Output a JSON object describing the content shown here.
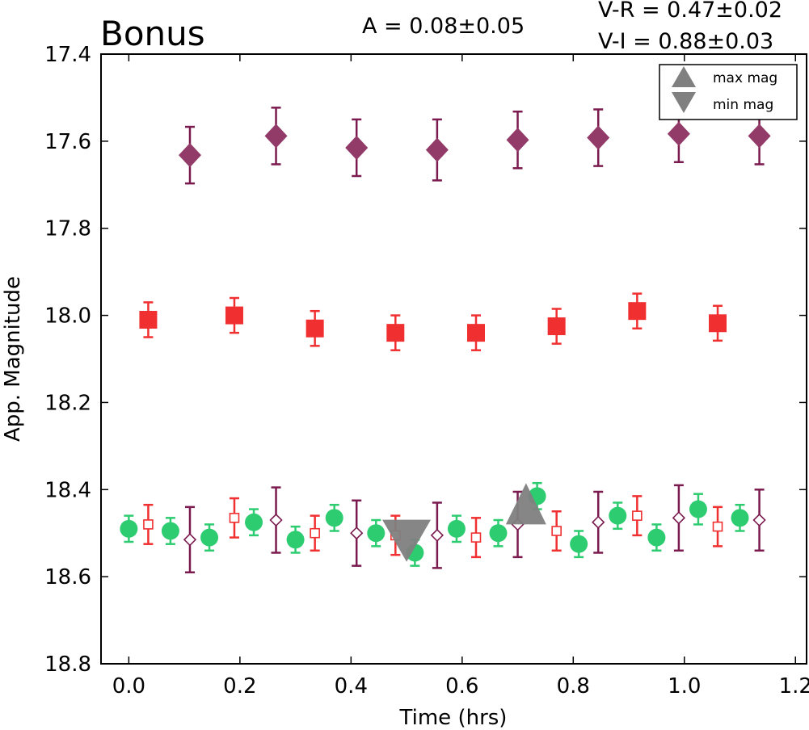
{
  "chart_data": {
    "type": "scatter",
    "title": "Bonus",
    "xlabel": "Time (hrs)",
    "ylabel": "App. Magnitude",
    "xlim": [
      -0.05,
      1.22
    ],
    "ylim": [
      18.8,
      17.4
    ],
    "y_inverted": true,
    "xticks": [
      "0.0",
      "0.2",
      "0.4",
      "0.6",
      "0.8",
      "1.0",
      "1.2"
    ],
    "yticks": [
      "17.4",
      "17.6",
      "17.8",
      "18.0",
      "18.2",
      "18.4",
      "18.6",
      "18.8"
    ],
    "annotations": {
      "amplitude": "A  = 0.08±0.05",
      "v_minus_r": "V-R = 0.47±0.02",
      "v_minus_i": "V-I  = 0.88±0.03"
    },
    "legend": {
      "placement": "top-right",
      "entries": [
        {
          "label": "max mag",
          "marker": "triangle-up",
          "color": "#808080"
        },
        {
          "label": "min mag",
          "marker": "triangle-down",
          "color": "#808080"
        }
      ]
    },
    "colors": {
      "green": "#2ecc71",
      "red": "#f03030",
      "purple": "#7b1a4e",
      "purple_fill": "#923a68",
      "gray": "#808080"
    },
    "series": [
      {
        "marker": "diamond-filled",
        "color": "#923a68",
        "errcolor": "#7b1a4e",
        "x": [
          0.11,
          0.265,
          0.41,
          0.555,
          0.7,
          0.845,
          0.99,
          1.135
        ],
        "y": [
          17.632,
          17.588,
          17.615,
          17.62,
          17.597,
          17.592,
          17.583,
          17.588
        ],
        "err": [
          0.065,
          0.065,
          0.065,
          0.07,
          0.065,
          0.065,
          0.065,
          0.065
        ]
      },
      {
        "marker": "square-filled",
        "color": "#f03030",
        "errcolor": "#f03030",
        "x": [
          0.035,
          0.19,
          0.335,
          0.48,
          0.625,
          0.77,
          0.915,
          1.06
        ],
        "y": [
          18.01,
          18.0,
          18.03,
          18.04,
          18.04,
          18.025,
          17.99,
          18.018
        ],
        "err": [
          0.04,
          0.04,
          0.04,
          0.04,
          0.04,
          0.04,
          0.04,
          0.04
        ]
      },
      {
        "marker": "circle-filled",
        "color": "#2ecc71",
        "errcolor": "#2ecc71",
        "x": [
          0.0,
          0.075,
          0.145,
          0.225,
          0.3,
          0.37,
          0.445,
          0.515,
          0.59,
          0.665,
          0.735,
          0.81,
          0.88,
          0.95,
          1.025,
          1.1
        ],
        "y": [
          18.49,
          18.495,
          18.51,
          18.475,
          18.515,
          18.465,
          18.5,
          18.545,
          18.49,
          18.5,
          18.415,
          18.525,
          18.46,
          18.51,
          18.445,
          18.465
        ],
        "err": [
          0.03,
          0.03,
          0.03,
          0.03,
          0.03,
          0.03,
          0.03,
          0.03,
          0.03,
          0.03,
          0.03,
          0.03,
          0.03,
          0.03,
          0.035,
          0.03
        ]
      },
      {
        "marker": "square-open",
        "color": "#f03030",
        "errcolor": "#f03030",
        "x": [
          0.035,
          0.19,
          0.335,
          0.48,
          0.625,
          0.77,
          0.915,
          1.06
        ],
        "y": [
          18.48,
          18.465,
          18.5,
          18.505,
          18.51,
          18.495,
          18.46,
          18.485
        ],
        "err": [
          0.045,
          0.045,
          0.04,
          0.045,
          0.045,
          0.045,
          0.045,
          0.045
        ]
      },
      {
        "marker": "diamond-open",
        "color": "#7b1a4e",
        "errcolor": "#7b1a4e",
        "x": [
          0.11,
          0.265,
          0.41,
          0.555,
          0.7,
          0.845,
          0.99,
          1.135
        ],
        "y": [
          18.515,
          18.47,
          18.5,
          18.505,
          18.48,
          18.475,
          18.465,
          18.47
        ],
        "err": [
          0.075,
          0.075,
          0.075,
          0.075,
          0.075,
          0.07,
          0.075,
          0.07
        ]
      },
      {
        "marker": "triangle-down",
        "color": "#808080",
        "x": [
          0.5
        ],
        "y": [
          18.51
        ]
      },
      {
        "marker": "triangle-up",
        "color": "#808080",
        "x": [
          0.715
        ],
        "y": [
          18.465
        ]
      }
    ]
  }
}
